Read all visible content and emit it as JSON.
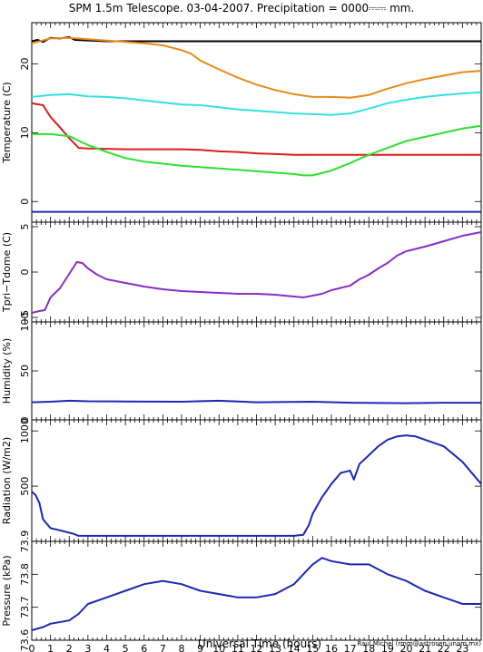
{
  "chart_data": {
    "type": "line",
    "title": "SPM 1.5m Telescope. 03-04-2007. Precipitation = 0000⎓⎓ mm.",
    "xlabel": "Universal Time (hours)",
    "credit": "Raul Michel (rmm@astrosen.unam.mx)",
    "xlim": [
      0,
      24
    ],
    "xticks": [
      "0",
      "1",
      "2",
      "3",
      "4",
      "5",
      "6",
      "7",
      "8",
      "9",
      "10",
      "11",
      "12",
      "13",
      "14",
      "15",
      "16",
      "17",
      "18",
      "19",
      "20",
      "21",
      "22",
      "23"
    ],
    "panels": [
      {
        "id": "temperature",
        "ylabel": "Temperature (C)",
        "ylim": [
          -3,
          26
        ],
        "yticks": [
          {
            "v": 0,
            "label": "0"
          },
          {
            "v": 10,
            "label": "10"
          },
          {
            "v": 20,
            "label": "20"
          }
        ],
        "series": [
          {
            "color": "#000000",
            "points": [
              [
                0,
                23.3
              ],
              [
                0.3,
                23.5
              ],
              [
                0.6,
                23.2
              ],
              [
                1,
                23.8
              ],
              [
                1.5,
                23.7
              ],
              [
                2,
                23.9
              ],
              [
                2.3,
                23.5
              ],
              [
                4,
                23.3
              ],
              [
                24,
                23.3
              ]
            ]
          },
          {
            "color": "#e88a1a",
            "points": [
              [
                0,
                23
              ],
              [
                1,
                23.7
              ],
              [
                2,
                23.8
              ],
              [
                3,
                23.6
              ],
              [
                4,
                23.4
              ],
              [
                5,
                23.2
              ],
              [
                6,
                23
              ],
              [
                7,
                22.7
              ],
              [
                8,
                22
              ],
              [
                8.5,
                21.5
              ],
              [
                9,
                20.5
              ],
              [
                10,
                19.2
              ],
              [
                11,
                18
              ],
              [
                12,
                17
              ],
              [
                13,
                16.2
              ],
              [
                14,
                15.6
              ],
              [
                15,
                15.2
              ],
              [
                16,
                15.2
              ],
              [
                17,
                15.1
              ],
              [
                18,
                15.5
              ],
              [
                19,
                16.4
              ],
              [
                20,
                17.2
              ],
              [
                21,
                17.8
              ],
              [
                22,
                18.3
              ],
              [
                23,
                18.8
              ],
              [
                24,
                19
              ]
            ]
          },
          {
            "color": "#33e0e0",
            "points": [
              [
                0,
                15.2
              ],
              [
                1,
                15.5
              ],
              [
                2,
                15.6
              ],
              [
                3,
                15.3
              ],
              [
                4,
                15.2
              ],
              [
                5,
                15
              ],
              [
                6,
                14.7
              ],
              [
                7,
                14.4
              ],
              [
                8,
                14.1
              ],
              [
                9,
                14
              ],
              [
                10,
                13.7
              ],
              [
                11,
                13.4
              ],
              [
                12,
                13.2
              ],
              [
                13,
                13
              ],
              [
                14,
                12.8
              ],
              [
                15,
                12.7
              ],
              [
                16,
                12.6
              ],
              [
                17,
                12.8
              ],
              [
                18,
                13.5
              ],
              [
                19,
                14.3
              ],
              [
                20,
                14.8
              ],
              [
                21,
                15.2
              ],
              [
                22,
                15.5
              ],
              [
                23,
                15.7
              ],
              [
                24,
                15.9
              ]
            ]
          },
          {
            "color": "#dd1c1c",
            "points": [
              [
                0,
                14.3
              ],
              [
                0.6,
                14
              ],
              [
                1,
                12.3
              ],
              [
                1.5,
                10.8
              ],
              [
                2,
                9.2
              ],
              [
                2.5,
                7.8
              ],
              [
                3,
                7.7
              ],
              [
                5,
                7.6
              ],
              [
                8,
                7.6
              ],
              [
                9,
                7.5
              ],
              [
                10,
                7.3
              ],
              [
                11,
                7.2
              ],
              [
                12,
                7
              ],
              [
                13,
                6.9
              ],
              [
                14,
                6.8
              ],
              [
                16,
                6.8
              ],
              [
                24,
                6.8
              ]
            ]
          },
          {
            "color": "#2ee02e",
            "points": [
              [
                0,
                9.8
              ],
              [
                1,
                9.8
              ],
              [
                2,
                9.5
              ],
              [
                3,
                8.2
              ],
              [
                4,
                7.2
              ],
              [
                5,
                6.3
              ],
              [
                6,
                5.8
              ],
              [
                7,
                5.5
              ],
              [
                8,
                5.2
              ],
              [
                9,
                5
              ],
              [
                10,
                4.8
              ],
              [
                11,
                4.6
              ],
              [
                12,
                4.4
              ],
              [
                13,
                4.2
              ],
              [
                14,
                4
              ],
              [
                14.5,
                3.8
              ],
              [
                15,
                3.8
              ],
              [
                16,
                4.5
              ],
              [
                17,
                5.6
              ],
              [
                18,
                6.8
              ],
              [
                19,
                7.8
              ],
              [
                20,
                8.8
              ],
              [
                21,
                9.4
              ],
              [
                22,
                10
              ],
              [
                23,
                10.6
              ],
              [
                24,
                11
              ]
            ]
          },
          {
            "color": "#1a28b4",
            "points": [
              [
                0,
                -1.5
              ],
              [
                24,
                -1.5
              ]
            ]
          }
        ]
      },
      {
        "id": "tpri-tdome",
        "ylabel": "Tpri−Tdome (C)",
        "ylim": [
          -5.5,
          5.5
        ],
        "yticks": [
          {
            "v": -5,
            "label": "−5"
          },
          {
            "v": 0,
            "label": "0"
          },
          {
            "v": 5,
            "label": "5"
          }
        ],
        "series": [
          {
            "color": "#8a2cc8",
            "points": [
              [
                0,
                -4.5
              ],
              [
                0.4,
                -4.3
              ],
              [
                0.7,
                -4.2
              ],
              [
                1,
                -2.8
              ],
              [
                1.5,
                -1.8
              ],
              [
                2,
                -0.2
              ],
              [
                2.4,
                1.1
              ],
              [
                2.7,
                1
              ],
              [
                3,
                0.4
              ],
              [
                3.5,
                -0.3
              ],
              [
                4,
                -0.8
              ],
              [
                5,
                -1.2
              ],
              [
                6,
                -1.6
              ],
              [
                7,
                -1.9
              ],
              [
                8,
                -2.1
              ],
              [
                9,
                -2.2
              ],
              [
                10,
                -2.3
              ],
              [
                11,
                -2.4
              ],
              [
                12,
                -2.4
              ],
              [
                13,
                -2.5
              ],
              [
                14,
                -2.7
              ],
              [
                14.5,
                -2.8
              ],
              [
                15,
                -2.6
              ],
              [
                15.5,
                -2.4
              ],
              [
                16,
                -2
              ],
              [
                17,
                -1.5
              ],
              [
                17.5,
                -0.8
              ],
              [
                18,
                -0.3
              ],
              [
                18.5,
                0.4
              ],
              [
                19,
                1
              ],
              [
                19.5,
                1.8
              ],
              [
                20,
                2.3
              ],
              [
                21,
                2.8
              ],
              [
                22,
                3.4
              ],
              [
                23,
                4
              ],
              [
                24,
                4.4
              ]
            ]
          }
        ]
      },
      {
        "id": "humidity",
        "ylabel": "Humidity (%)",
        "ylim": [
          0,
          100
        ],
        "yticks": [
          {
            "v": 0,
            "label": "0"
          },
          {
            "v": 50,
            "label": "50"
          },
          {
            "v": 100,
            "label": "100"
          }
        ],
        "series": [
          {
            "color": "#1a28b4",
            "points": [
              [
                0,
                18
              ],
              [
                1,
                18.5
              ],
              [
                2,
                19.5
              ],
              [
                3,
                19
              ],
              [
                5,
                18.8
              ],
              [
                8,
                18.5
              ],
              [
                10,
                19.5
              ],
              [
                12,
                18
              ],
              [
                15,
                18.5
              ],
              [
                17,
                17.5
              ],
              [
                20,
                17
              ],
              [
                22,
                17.5
              ],
              [
                24,
                17.5
              ]
            ]
          }
        ]
      },
      {
        "id": "radiation",
        "ylabel": "Radiation (W/m2)",
        "ylim": [
          0,
          1100
        ],
        "yticks": [
          {
            "v": 500,
            "label": "500"
          },
          {
            "v": 1000,
            "label": "1000"
          }
        ],
        "series": [
          {
            "color": "#1a28b4",
            "points": [
              [
                0,
                450
              ],
              [
                0.2,
                420
              ],
              [
                0.4,
                350
              ],
              [
                0.6,
                200
              ],
              [
                1,
                120
              ],
              [
                1.5,
                100
              ],
              [
                2.2,
                70
              ],
              [
                2.5,
                50
              ],
              [
                4,
                50
              ],
              [
                8,
                50
              ],
              [
                12,
                50
              ],
              [
                14,
                50
              ],
              [
                14.5,
                60
              ],
              [
                14.8,
                150
              ],
              [
                15,
                250
              ],
              [
                15.5,
                400
              ],
              [
                16,
                520
              ],
              [
                16.5,
                620
              ],
              [
                17,
                640
              ],
              [
                17.2,
                560
              ],
              [
                17.5,
                700
              ],
              [
                18,
                780
              ],
              [
                18.5,
                860
              ],
              [
                19,
                920
              ],
              [
                19.5,
                950
              ],
              [
                20,
                960
              ],
              [
                20.5,
                950
              ],
              [
                21,
                920
              ],
              [
                22,
                860
              ],
              [
                23,
                720
              ],
              [
                24,
                520
              ]
            ]
          }
        ]
      },
      {
        "id": "pressure",
        "ylabel": "Pressure (kPa)",
        "ylim": [
          73.6,
          73.9
        ],
        "yticks": [
          {
            "v": 73.6,
            "label": "73.6"
          },
          {
            "v": 73.7,
            "label": "73.7"
          },
          {
            "v": 73.8,
            "label": "73.8"
          },
          {
            "v": 73.9,
            "label": "73.9"
          }
        ],
        "series": [
          {
            "color": "#1a28b4",
            "points": [
              [
                0,
                73.63
              ],
              [
                0.6,
                73.64
              ],
              [
                1,
                73.65
              ],
              [
                2,
                73.66
              ],
              [
                2.5,
                73.68
              ],
              [
                3,
                73.71
              ],
              [
                4,
                73.73
              ],
              [
                5,
                73.75
              ],
              [
                6,
                73.77
              ],
              [
                7,
                73.78
              ],
              [
                8,
                73.77
              ],
              [
                9,
                73.75
              ],
              [
                10,
                73.74
              ],
              [
                11,
                73.73
              ],
              [
                12,
                73.73
              ],
              [
                13,
                73.74
              ],
              [
                14,
                73.77
              ],
              [
                14.5,
                73.8
              ],
              [
                15,
                73.83
              ],
              [
                15.5,
                73.85
              ],
              [
                16,
                73.84
              ],
              [
                17,
                73.83
              ],
              [
                18,
                73.83
              ],
              [
                19,
                73.8
              ],
              [
                20,
                73.78
              ],
              [
                21,
                73.75
              ],
              [
                22,
                73.73
              ],
              [
                23,
                73.71
              ],
              [
                24,
                73.71
              ]
            ]
          }
        ]
      }
    ]
  }
}
